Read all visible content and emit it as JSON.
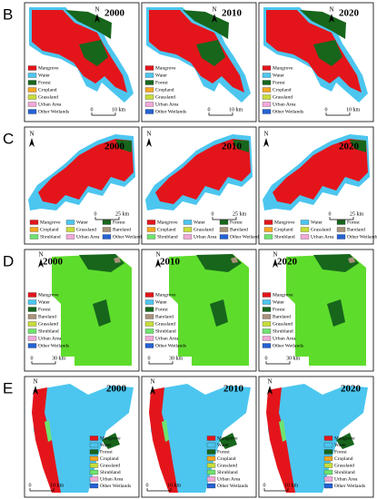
{
  "panels": [
    {
      "label": "B",
      "years": [
        "2000",
        "2010",
        "2020"
      ],
      "north": "N",
      "scale": {
        "zero": "0",
        "length": "10 km"
      },
      "legend": [
        {
          "name": "Mangrove",
          "color": "#e3151b"
        },
        {
          "name": "Water",
          "color": "#4cc6ef"
        },
        {
          "name": "Forest",
          "color": "#17661c"
        },
        {
          "name": "Cropland",
          "color": "#f5a623"
        },
        {
          "name": "Grassland",
          "color": "#c8dc3a"
        },
        {
          "name": "Urban Area",
          "color": "#f2a7d8"
        },
        {
          "name": "Other Wetlands",
          "color": "#2461d4"
        }
      ]
    },
    {
      "label": "C",
      "years": [
        "2000",
        "2010",
        "2020"
      ],
      "north": "N",
      "scale": {
        "zero": "0",
        "length": "25 km"
      },
      "legend": [
        {
          "name": "Mangrove",
          "color": "#e3151b"
        },
        {
          "name": "Water",
          "color": "#4cc6ef"
        },
        {
          "name": "Forest",
          "color": "#17661c"
        },
        {
          "name": "Cropland",
          "color": "#f5a623"
        },
        {
          "name": "Grassland",
          "color": "#c8dc3a"
        },
        {
          "name": "Bareland",
          "color": "#a8927a"
        },
        {
          "name": "Shrubland",
          "color": "#6fe36f"
        },
        {
          "name": "Urban Area",
          "color": "#f2a7d8"
        },
        {
          "name": "Other Wetlands",
          "color": "#2461d4"
        }
      ]
    },
    {
      "label": "D",
      "years": [
        "2000",
        "2010",
        "2020"
      ],
      "north": "N",
      "scale": {
        "zero": "0",
        "length": "30 km"
      },
      "legend": [
        {
          "name": "Mangrove",
          "color": "#e3151b"
        },
        {
          "name": "Water",
          "color": "#4cc6ef"
        },
        {
          "name": "Forest",
          "color": "#17661c"
        },
        {
          "name": "Bareland",
          "color": "#a8927a"
        },
        {
          "name": "Grassland",
          "color": "#c8dc3a"
        },
        {
          "name": "Shrubland",
          "color": "#6fe36f"
        },
        {
          "name": "Urban Area",
          "color": "#f2a7d8"
        },
        {
          "name": "Other Wetlands",
          "color": "#2461d4"
        }
      ]
    },
    {
      "label": "E",
      "years": [
        "2000",
        "2010",
        "2020"
      ],
      "north": "N",
      "scale": {
        "zero": "0",
        "length": "10 km"
      },
      "legend": [
        {
          "name": "Mangrove",
          "color": "#e3151b"
        },
        {
          "name": "Water",
          "color": "#4cc6ef"
        },
        {
          "name": "Forest",
          "color": "#17661c"
        },
        {
          "name": "Cropland",
          "color": "#f5a623"
        },
        {
          "name": "Grassland",
          "color": "#c8dc3a"
        },
        {
          "name": "Shrubland",
          "color": "#6fe36f"
        },
        {
          "name": "Urban Area",
          "color": "#f2a7d8"
        },
        {
          "name": "Other Wetlands",
          "color": "#2461d4"
        }
      ]
    }
  ]
}
